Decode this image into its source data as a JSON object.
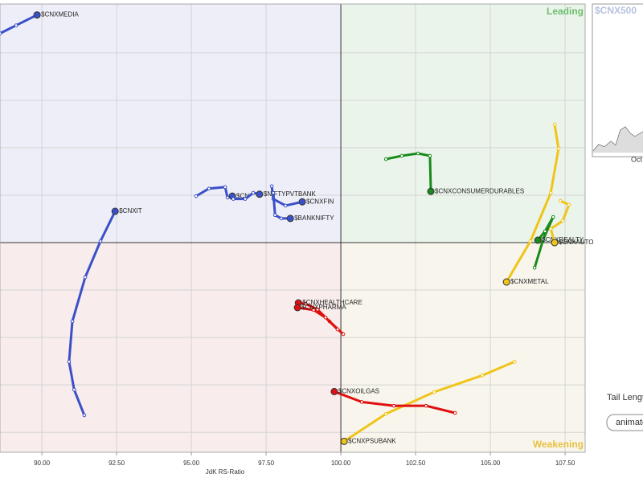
{
  "chart_data": {
    "type": "rrg",
    "x_label": "JdK RS-Ratio",
    "xlim": [
      88.6,
      108.17
    ],
    "ylim": [
      95.58,
      105.03
    ],
    "xticks": [
      {
        "value": 90,
        "label": "90.00"
      },
      {
        "value": 92.5,
        "label": "92.50"
      },
      {
        "value": 95,
        "label": "95.00"
      },
      {
        "value": 97.5,
        "label": "97.50"
      },
      {
        "value": 100,
        "label": "100.00"
      },
      {
        "value": 102.5,
        "label": "102.50"
      },
      {
        "value": 105,
        "label": "105.00"
      },
      {
        "value": 107.5,
        "label": "107.50"
      }
    ],
    "yticks": [
      96,
      97,
      98,
      99,
      101,
      102,
      103,
      104
    ],
    "center": [
      100,
      100
    ],
    "grid": true,
    "quadrant_labels": {
      "leading": "Leading",
      "weakening": "Weakening"
    },
    "series": [
      {
        "name": "$CNXMEDIA",
        "color": "#3a50c8",
        "x": [
          88.6,
          89.14,
          89.84
        ],
        "values": [
          104.41,
          104.58,
          104.8
        ]
      },
      {
        "name": "$CNXIT",
        "color": "#3a50c8",
        "x": [
          91.42,
          91.08,
          90.91,
          91.02,
          91.45,
          91.96,
          92.45
        ],
        "values": [
          96.36,
          96.9,
          97.49,
          98.34,
          99.27,
          100.03,
          100.66
        ]
      },
      {
        "name": "$CN",
        "color": "#3a50c8",
        "x": [
          95.16,
          95.59,
          96.13,
          96.21,
          96.37
        ],
        "values": [
          100.98,
          101.14,
          101.17,
          100.95,
          100.98
        ]
      },
      {
        "name": "$NIFTYPVTBANK",
        "color": "#3a50c8",
        "x": [
          96.4,
          96.8,
          97.07,
          97.28
        ],
        "values": [
          100.92,
          100.92,
          101.05,
          101.02
        ]
      },
      {
        "name": "$CNXFIN",
        "color": "#3a50c8",
        "x": [
          97.69,
          97.74,
          98.15,
          98.71
        ],
        "values": [
          101.19,
          100.92,
          100.78,
          100.86
        ]
      },
      {
        "name": "$BANKNIFTY",
        "color": "#3a50c8",
        "x": [
          97.74,
          97.8,
          98.01,
          98.31
        ],
        "values": [
          101.05,
          100.58,
          100.51,
          100.51
        ]
      },
      {
        "name": "$CNXCONSUMERDURABLES",
        "color": "#1a8a1a",
        "x": [
          101.51,
          102.04,
          102.58,
          102.98,
          103.01
        ],
        "values": [
          101.76,
          101.83,
          101.88,
          101.83,
          101.08
        ]
      },
      {
        "name": "$CNXREALTY",
        "color": "#1a8a1a",
        "x": [
          106.48,
          106.77,
          107.1,
          106.83,
          106.59
        ],
        "values": [
          99.47,
          100.07,
          100.54,
          100.24,
          100.05
        ]
      },
      {
        "name": "$CNXAUTO",
        "color": "#f0c419",
        "x": [
          107.34,
          107.63,
          107.42,
          107.02,
          107.15
        ],
        "values": [
          100.88,
          100.8,
          100.46,
          100.29,
          100
        ]
      },
      {
        "name": "$CNXMETAL",
        "color": "#f0c419",
        "x": [
          107.15,
          107.28,
          107.02,
          106.34,
          105.54
        ],
        "values": [
          102.49,
          101.98,
          101.05,
          100.03,
          99.17
        ]
      },
      {
        "name": "$CNXPSUBANK",
        "color": "#f0c419",
        "x": [
          105.81,
          104.73,
          103.12,
          101.51,
          100.11
        ],
        "values": [
          97.49,
          97.2,
          96.85,
          96.39,
          95.81
        ]
      },
      {
        "name": "$CNXHEALTHCARE",
        "color": "#e01010",
        "x": [
          100.08,
          99.62,
          99.22,
          98.82,
          98.58
        ],
        "values": [
          98.07,
          98.34,
          98.59,
          98.71,
          98.73
        ]
      },
      {
        "name": "$CNXPHARMA",
        "color": "#e01010",
        "x": [
          99.89,
          99.49,
          99.09,
          98.55
        ],
        "values": [
          98.17,
          98.42,
          98.58,
          98.63
        ]
      },
      {
        "name": "$CNXOILGAS",
        "color": "#e01010",
        "x": [
          103.82,
          102.85,
          101.77,
          100.7,
          99.78
        ],
        "values": [
          96.41,
          96.56,
          96.56,
          96.64,
          96.86
        ]
      }
    ]
  },
  "side_panel": {
    "title": "$CNX500",
    "month": "Oct",
    "tail_label": "Tail Length",
    "button": "animate"
  }
}
